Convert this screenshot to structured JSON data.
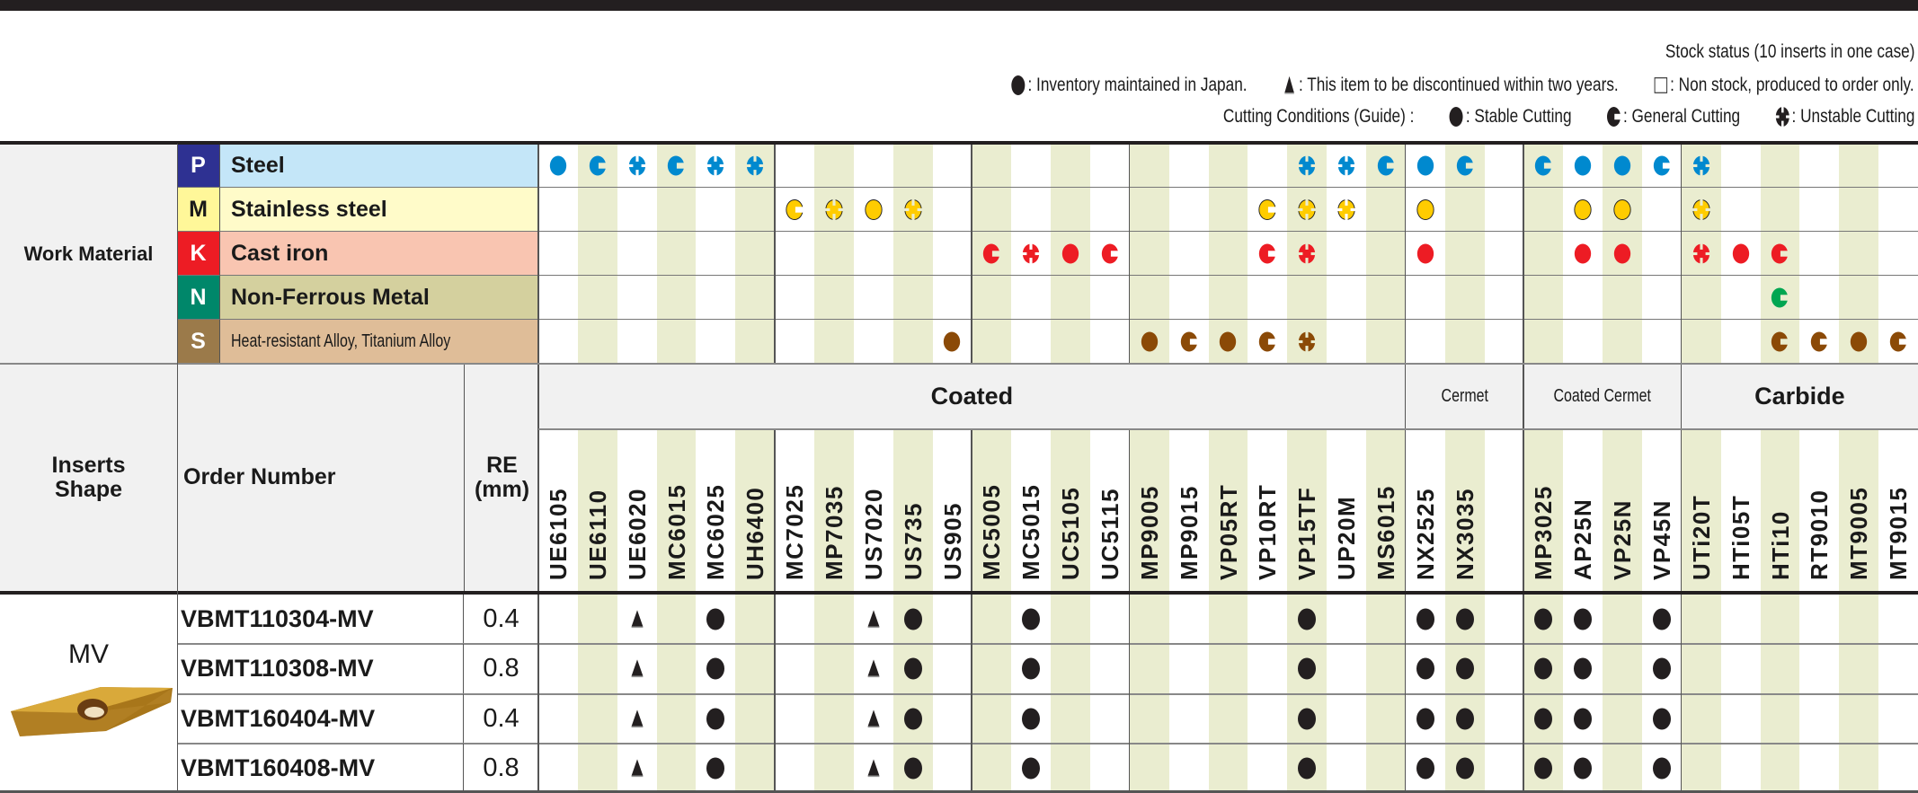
{
  "legend": {
    "stock_title": "Stock status (10 inserts in one case)",
    "stock_items": [
      {
        "icon": "filled-circle-icon",
        "label": ": Inventory maintained in Japan."
      },
      {
        "icon": "triangle-icon",
        "label": ": This item to be discontinued within two years."
      },
      {
        "icon": "empty-square-icon",
        "label": ": Non stock, produced to order only."
      }
    ],
    "cutting_title": "Cutting Conditions (Guide) :",
    "cutting_items": [
      {
        "icon": "stable-cutting-icon",
        "label": ": Stable Cutting"
      },
      {
        "icon": "general-cutting-icon",
        "label": ": General Cutting"
      },
      {
        "icon": "unstable-cutting-icon",
        "label": ": Unstable Cutting"
      }
    ]
  },
  "labels": {
    "work_material": "Work Material",
    "inserts_shape": "Inserts Shape",
    "order_number": "Order Number",
    "re": "RE",
    "re_unit": "(mm)"
  },
  "groups": [
    {
      "name": "Coated",
      "start": 0,
      "end": 21
    },
    {
      "name": "Cermet",
      "start": 22,
      "end": 24
    },
    {
      "name": "Coated Cermet",
      "start": 25,
      "end": 28
    },
    {
      "name": "Carbide",
      "start": 29,
      "end": 34
    }
  ],
  "grades": [
    "UE6105",
    "UE6110",
    "UE6020",
    "MC6015",
    "MC6025",
    "UH6400",
    "MC7025",
    "MP7035",
    "US7020",
    "US735",
    "US905",
    "MC5005",
    "MC5015",
    "UC5105",
    "UC5115",
    "MP9005",
    "MP9015",
    "VP05RT",
    "VP10RT",
    "VP15TF",
    "UP20M",
    "MS6015",
    "NX2525",
    "NX3035",
    "",
    "MP3025",
    "AP25N",
    "VP25N",
    "VP45N",
    "UTi20T",
    "HTi05T",
    "HTi10",
    "RT9010",
    "MT9005",
    "MT9015"
  ],
  "materials": [
    {
      "letter": "P",
      "name": "Steel",
      "letter_bg": "#2e3192",
      "letter_color": "#ffffff",
      "name_bg": "#c4e6f8",
      "mark_color": "#0089cf",
      "marks": {
        "0": "S",
        "1": "G",
        "2": "U",
        "3": "G",
        "4": "U",
        "5": "U",
        "19": "U",
        "20": "U",
        "21": "G",
        "22": "S",
        "23": "G",
        "25": "G",
        "26": "S",
        "27": "S",
        "28": "G",
        "29": "U"
      }
    },
    {
      "letter": "M",
      "name": "Stainless steel",
      "letter_bg": "#fff799",
      "letter_color": "#1a1a1a",
      "name_bg": "#fffbc9",
      "mark_color": "#ffcc00",
      "marks": {
        "6": "G",
        "7": "U",
        "8": "S",
        "9": "U",
        "18": "G",
        "19": "U",
        "20": "U",
        "22": "S",
        "26": "S",
        "27": "S",
        "29": "U"
      }
    },
    {
      "letter": "K",
      "name": "Cast iron",
      "letter_bg": "#ed1c24",
      "letter_color": "#ffffff",
      "name_bg": "#f9c5b1",
      "mark_color": "#ed1c24",
      "marks": {
        "11": "G",
        "12": "U",
        "13": "S",
        "14": "G",
        "18": "G",
        "19": "U",
        "22": "S",
        "26": "S",
        "27": "S",
        "29": "U",
        "30": "S",
        "31": "G"
      }
    },
    {
      "letter": "N",
      "name": "Non-Ferrous Metal",
      "letter_bg": "#00876a",
      "letter_color": "#ffffff",
      "name_bg": "#d4d09e",
      "mark_color": "#00a651",
      "marks": {
        "31": "G"
      }
    },
    {
      "letter": "S",
      "name": "Heat-resistant Alloy, Titanium Alloy",
      "letter_bg": "#9b7a4a",
      "letter_color": "#ffffff",
      "name_bg": "#dfbd98",
      "mark_color": "#8b4a07",
      "marks": {
        "10": "S",
        "15": "S",
        "16": "G",
        "17": "S",
        "18": "G",
        "19": "U",
        "31": "G",
        "32": "G",
        "33": "S",
        "34": "G"
      }
    }
  ],
  "insert": {
    "shape_name": "MV"
  },
  "products": [
    {
      "order": "VBMT110304-MV",
      "re": "0.4",
      "stock": {
        "2": "T",
        "4": "C",
        "8": "T",
        "9": "C",
        "12": "C",
        "19": "C",
        "22": "C",
        "23": "C",
        "25": "C",
        "26": "C",
        "28": "C"
      }
    },
    {
      "order": "VBMT110308-MV",
      "re": "0.8",
      "stock": {
        "2": "T",
        "4": "C",
        "8": "T",
        "9": "C",
        "12": "C",
        "19": "C",
        "22": "C",
        "23": "C",
        "25": "C",
        "26": "C",
        "28": "C"
      }
    },
    {
      "order": "VBMT160404-MV",
      "re": "0.4",
      "stock": {
        "2": "T",
        "4": "C",
        "8": "T",
        "9": "C",
        "12": "C",
        "19": "C",
        "22": "C",
        "23": "C",
        "25": "C",
        "26": "C",
        "28": "C"
      }
    },
    {
      "order": "VBMT160408-MV",
      "re": "0.8",
      "stock": {
        "2": "T",
        "4": "C",
        "8": "T",
        "9": "C",
        "12": "C",
        "19": "C",
        "22": "C",
        "23": "C",
        "25": "C",
        "26": "C",
        "28": "C"
      }
    }
  ],
  "colors": {
    "stripe": "#eaedd0",
    "header_gray": "#f1f1f1",
    "ink": "#231f20"
  }
}
